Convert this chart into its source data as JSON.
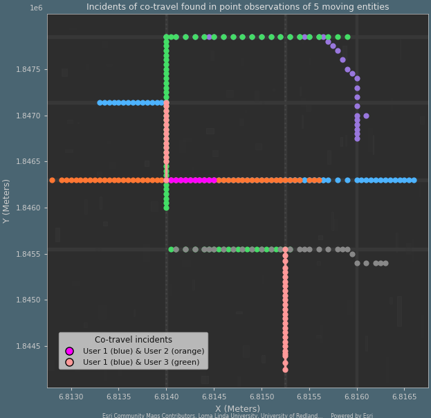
{
  "title": "Incidents of co-travel found in point observations of 5 moving entities",
  "xlabel": "X (Meters)",
  "ylabel": "Y (Meters)",
  "xlim": [
    6812750.0,
    6816750.0
  ],
  "ylim": [
    1844050.0,
    1848100.0
  ],
  "xticks": [
    6813000.0,
    6813500.0,
    6814000.0,
    6814500.0,
    6815000.0,
    6815500.0,
    6816000.0,
    6816500.0
  ],
  "yticks": [
    1844500.0,
    1845000.0,
    1845500.0,
    1846000.0,
    1846500.0,
    1847000.0,
    1847500.0
  ],
  "bg_color": "#2d2d2d",
  "fig_color": "#4a6572",
  "title_color": "#e0e0e0",
  "axis_color": "#cccccc",
  "tick_color": "#cccccc",
  "attribution": "Esri Community Maps Contributors, Loma Linda University, University of Redland...     Powered by Esri",
  "user1_color": "#4db3ff",
  "user2_color": "#ff7733",
  "user3_color": "#44dd66",
  "user4_color": "#9977dd",
  "user5_color": "#888888",
  "cotravel12_color": "#ff00ff",
  "cotravel13_color": "#ff9999",
  "user1_x": [
    6813300.0,
    6813350.0,
    6813400.0,
    6813450.0,
    6813500.0,
    6813550.0,
    6813600.0,
    6813650.0,
    6813700.0,
    6813750.0,
    6813800.0,
    6813850.0,
    6813900.0,
    6813950.0,
    6814000.0
  ],
  "user1_y": [
    1847140.0,
    1847140.0,
    1847140.0,
    1847140.0,
    1847140.0,
    1847140.0,
    1847140.0,
    1847140.0,
    1847140.0,
    1847140.0,
    1847140.0,
    1847140.0,
    1847140.0,
    1847140.0,
    1847140.0
  ],
  "user2_x": [
    6812800.0,
    6812900.0,
    6812950.0,
    6813000.0,
    6813050.0,
    6813100.0,
    6813150.0,
    6813200.0,
    6813250.0,
    6813300.0,
    6813350.0,
    6813400.0,
    6813450.0,
    6813500.0,
    6813550.0,
    6813600.0,
    6813650.0,
    6813700.0,
    6813750.0,
    6813800.0,
    6813850.0,
    6813900.0,
    6813950.0,
    6814000.0,
    6814050.0,
    6814100.0,
    6814150.0,
    6814200.0,
    6814250.0,
    6814300.0,
    6814350.0,
    6814400.0,
    6814450.0,
    6814500.0,
    6814550.0,
    6814600.0,
    6814650.0,
    6814700.0,
    6814750.0,
    6814800.0,
    6814850.0,
    6814900.0,
    6814950.0,
    6815000.0,
    6815050.0,
    6815100.0,
    6815150.0,
    6815200.0
  ],
  "user2_y": [
    1846300.0,
    1846300.0,
    1846300.0,
    1846300.0,
    1846300.0,
    1846300.0,
    1846300.0,
    1846300.0,
    1846300.0,
    1846300.0,
    1846300.0,
    1846300.0,
    1846300.0,
    1846300.0,
    1846300.0,
    1846300.0,
    1846300.0,
    1846300.0,
    1846300.0,
    1846300.0,
    1846300.0,
    1846300.0,
    1846300.0,
    1846300.0,
    1846300.0,
    1846300.0,
    1846300.0,
    1846300.0,
    1846300.0,
    1846300.0,
    1846300.0,
    1846300.0,
    1846300.0,
    1846300.0,
    1846300.0,
    1846300.0,
    1846300.0,
    1846300.0,
    1846300.0,
    1846300.0,
    1846300.0,
    1846300.0,
    1846300.0,
    1846300.0,
    1846300.0,
    1846300.0,
    1846300.0,
    1846300.0
  ],
  "user2_extra_x": [
    6815200.0,
    6815250.0,
    6815300.0,
    6815350.0,
    6815400.0,
    6815500.0,
    6815550.0,
    6815600.0
  ],
  "user2_extra_y": [
    1846300.0,
    1846300.0,
    1846300.0,
    1846300.0,
    1846300.0,
    1846300.0,
    1846300.0,
    1846300.0
  ],
  "user1_blue_extra_x": [
    6814050.0,
    6814100.0,
    6814150.0,
    6814200.0,
    6814250.0,
    6814300.0,
    6814350.0,
    6814400.0,
    6814450.0,
    6814500.0,
    6814550.0,
    6814600.0,
    6814650.0,
    6814700.0,
    6814750.0,
    6814800.0,
    6814850.0,
    6814900.0,
    6814950.0,
    6815000.0,
    6815050.0,
    6815100.0,
    6815150.0,
    6815200.0,
    6815250.0,
    6815300.0,
    6815350.0,
    6815400.0,
    6815450.0,
    6815500.0,
    6815550.0,
    6815600.0,
    6815650.0
  ],
  "user1_blue_extra_y": [
    1846300.0,
    1846300.0,
    1846300.0,
    1846300.0,
    1846300.0,
    1846300.0,
    1846300.0,
    1846300.0,
    1846300.0,
    1846300.0,
    1846300.0,
    1846300.0,
    1846300.0,
    1846300.0,
    1846300.0,
    1846300.0,
    1846300.0,
    1846300.0,
    1846300.0,
    1846300.0,
    1846300.0,
    1846300.0,
    1846300.0,
    1846300.0,
    1846300.0,
    1846300.0,
    1846300.0,
    1846300.0,
    1846300.0,
    1846300.0,
    1846300.0,
    1846300.0,
    1846300.0
  ],
  "user3_vert_x": [
    6814000.0,
    6814000.0,
    6814000.0,
    6814000.0,
    6814000.0,
    6814000.0,
    6814000.0,
    6814000.0,
    6814000.0,
    6814000.0,
    6814000.0,
    6814000.0,
    6814000.0,
    6814000.0,
    6814000.0,
    6814000.0,
    6814000.0,
    6814000.0,
    6814000.0,
    6814000.0
  ],
  "user3_vert_y": [
    1847850.0,
    1847800.0,
    1847750.0,
    1847700.0,
    1847650.0,
    1847600.0,
    1847550.0,
    1847500.0,
    1847450.0,
    1847400.0,
    1847350.0,
    1847300.0,
    1847250.0,
    1847200.0,
    1847150.0,
    1847100.0,
    1847050.0,
    1847000.0,
    1846950.0,
    1846900.0
  ],
  "user3_horiz_top_x": [
    6814000.0,
    6814050.0,
    6814100.0,
    6814200.0,
    6814300.0,
    6814400.0,
    6814500.0,
    6814600.0,
    6814700.0,
    6814800.0,
    6814900.0,
    6815000.0,
    6815100.0,
    6815200.0,
    6815300.0,
    6815400.0,
    6815500.0,
    6815600.0,
    6815700.0,
    6815800.0,
    6815900.0
  ],
  "user3_horiz_top_y": [
    1847850.0,
    1847850.0,
    1847850.0,
    1847850.0,
    1847850.0,
    1847850.0,
    1847850.0,
    1847850.0,
    1847850.0,
    1847850.0,
    1847850.0,
    1847850.0,
    1847850.0,
    1847850.0,
    1847850.0,
    1847850.0,
    1847850.0,
    1847850.0,
    1847850.0,
    1847850.0,
    1847850.0
  ],
  "user3_lower_x": [
    6814000.0,
    6814000.0,
    6814000.0,
    6814000.0,
    6814000.0,
    6814000.0,
    6814000.0,
    6814000.0,
    6814000.0,
    6814000.0,
    6814000.0,
    6814000.0,
    6814000.0,
    6814000.0,
    6814000.0,
    6814000.0,
    6814000.0,
    6814000.0,
    6814050.0,
    6814100.0,
    6814200.0,
    6814300.0,
    6814400.0,
    6814450.0,
    6814500.0,
    6814550.0,
    6814600.0,
    6814650.0,
    6814700.0,
    6814750.0,
    6814800.0,
    6814850.0,
    6814900.0,
    6814950.0,
    6815000.0,
    6815050.0,
    6815100.0,
    6815150.0,
    6815200.0,
    6815250.0,
    6815300.0
  ],
  "user3_lower_y": [
    1846850.0,
    1846800.0,
    1846750.0,
    1846700.0,
    1846650.0,
    1846600.0,
    1846550.0,
    1846500.0,
    1846450.0,
    1846400.0,
    1846350.0,
    1846300.0,
    1846250.0,
    1846200.0,
    1846150.0,
    1846100.0,
    1846050.0,
    1846000.0,
    1845550.0,
    1845550.0,
    1845550.0,
    1845550.0,
    1845550.0,
    1845550.0,
    1845550.0,
    1845550.0,
    1845550.0,
    1845550.0,
    1845550.0,
    1845550.0,
    1845550.0,
    1845550.0,
    1845550.0,
    1845550.0,
    1845550.0,
    1845550.0,
    1845550.0,
    1845550.0,
    1845550.0,
    1845550.0,
    1845550.0
  ],
  "user4_x": [
    6814000.0,
    6814100.0,
    6814200.0,
    6814300.0,
    6814400.0,
    6814450.0,
    6814500.0,
    6814600.0,
    6814700.0,
    6814800.0,
    6814900.0,
    6815000.0,
    6815100.0,
    6815200.0,
    6815300.0,
    6815400.0,
    6815450.0,
    6815500.0,
    6815600.0,
    6815650.0,
    6815700.0,
    6815750.0,
    6815800.0,
    6815850.0,
    6815900.0,
    6815950.0,
    6816000.0,
    6816000.0,
    6816000.0,
    6816000.0,
    6816000.0,
    6816000.0,
    6816000.0,
    6816000.0,
    6816000.0,
    6816000.0,
    6816100.0
  ],
  "user4_y": [
    1847850.0,
    1847850.0,
    1847850.0,
    1847850.0,
    1847850.0,
    1847850.0,
    1847850.0,
    1847850.0,
    1847850.0,
    1847850.0,
    1847850.0,
    1847850.0,
    1847850.0,
    1847850.0,
    1847850.0,
    1847850.0,
    1847850.0,
    1847850.0,
    1847850.0,
    1847850.0,
    1847800.0,
    1847750.0,
    1847700.0,
    1847600.0,
    1847500.0,
    1847450.0,
    1847400.0,
    1847300.0,
    1847200.0,
    1847100.0,
    1847000.0,
    1846950.0,
    1846900.0,
    1846850.0,
    1846800.0,
    1846750.0,
    1847000.0
  ],
  "user5_x": [
    6814100.0,
    6814200.0,
    6814300.0,
    6814400.0,
    6814450.0,
    6814500.0,
    6814600.0,
    6814700.0,
    6814800.0,
    6814900.0,
    6815000.0,
    6815100.0,
    6815200.0,
    6815250.0,
    6815300.0,
    6815400.0,
    6815450.0,
    6815500.0,
    6815600.0,
    6815700.0,
    6815800.0,
    6815850.0,
    6815900.0,
    6815950.0,
    6816000.0,
    6816100.0,
    6816200.0,
    6816250.0,
    6816300.0
  ],
  "user5_y": [
    1845550.0,
    1845550.0,
    1845550.0,
    1845550.0,
    1845550.0,
    1845550.0,
    1845550.0,
    1845550.0,
    1845550.0,
    1845550.0,
    1845550.0,
    1845550.0,
    1845550.0,
    1845550.0,
    1845550.0,
    1845550.0,
    1845550.0,
    1845550.0,
    1845550.0,
    1845550.0,
    1845550.0,
    1845550.0,
    1845550.0,
    1845500.0,
    1845400.0,
    1845400.0,
    1845400.0,
    1845400.0,
    1845400.0
  ],
  "user1_blue_right_x": [
    6815250.0,
    6815300.0,
    6815350.0,
    6815400.0,
    6815450.0,
    6815500.0,
    6815550.0,
    6815600.0,
    6815650.0,
    6815700.0,
    6815800.0,
    6815900.0,
    6816000.0,
    6816050.0,
    6816100.0,
    6816150.0,
    6816200.0,
    6816250.0,
    6816300.0,
    6816350.0,
    6816400.0,
    6816450.0,
    6816500.0,
    6816550.0,
    6816600.0
  ],
  "user1_blue_right_y": [
    1846300.0,
    1846300.0,
    1846300.0,
    1846300.0,
    1846300.0,
    1846300.0,
    1846300.0,
    1846300.0,
    1846300.0,
    1846300.0,
    1846300.0,
    1846300.0,
    1846300.0,
    1846300.0,
    1846300.0,
    1846300.0,
    1846300.0,
    1846300.0,
    1846300.0,
    1846300.0,
    1846300.0,
    1846300.0,
    1846300.0,
    1846300.0,
    1846300.0
  ],
  "cotravel12_x": [
    6814000.0,
    6814050.0,
    6814100.0,
    6814150.0,
    6814200.0,
    6814250.0,
    6814300.0,
    6814350.0,
    6814400.0,
    6814450.0,
    6814500.0
  ],
  "cotravel12_y": [
    1846300.0,
    1846300.0,
    1846300.0,
    1846300.0,
    1846300.0,
    1846300.0,
    1846300.0,
    1846300.0,
    1846300.0,
    1846300.0,
    1846300.0
  ],
  "cotravel13_seg1_x": [
    6814000.0,
    6814000.0,
    6814000.0,
    6814000.0,
    6814000.0,
    6814000.0,
    6814000.0,
    6814000.0,
    6814000.0,
    6814000.0,
    6814000.0,
    6814000.0,
    6814000.0,
    6814000.0,
    6814000.0
  ],
  "cotravel13_seg1_y": [
    1847140.0,
    1847100.0,
    1847050.0,
    1847000.0,
    1846950.0,
    1846900.0,
    1846850.0,
    1846800.0,
    1846750.0,
    1846700.0,
    1846650.0,
    1846600.0,
    1846550.0,
    1846500.0,
    1846300.0
  ],
  "cotravel13_seg2_x": [
    6815250.0,
    6815250.0,
    6815250.0,
    6815250.0,
    6815250.0,
    6815250.0,
    6815250.0,
    6815250.0,
    6815250.0,
    6815250.0,
    6815250.0,
    6815250.0,
    6815250.0,
    6815250.0,
    6815250.0,
    6815250.0,
    6815250.0,
    6815250.0,
    6815250.0,
    6815250.0,
    6815250.0,
    6815250.0,
    6815250.0,
    6815250.0,
    6815250.0,
    6815250.0
  ],
  "cotravel13_seg2_y": [
    1845550.0,
    1845480.0,
    1845420.0,
    1845350.0,
    1845300.0,
    1845250.0,
    1845200.0,
    1845150.0,
    1845100.0,
    1845050.0,
    1845000.0,
    1844950.0,
    1844900.0,
    1844850.0,
    1844800.0,
    1844750.0,
    1844700.0,
    1844650.0,
    1844600.0,
    1844550.0,
    1844500.0,
    1844450.0,
    1844420.0,
    1844400.0,
    1844320.0,
    1844250.0
  ],
  "legend_title": "Co-travel incidents",
  "legend_entry1": "User 1 (blue) & User 2 (orange)",
  "legend_entry2": "User 1 (blue) & User 3 (green)",
  "dot_size": 35
}
